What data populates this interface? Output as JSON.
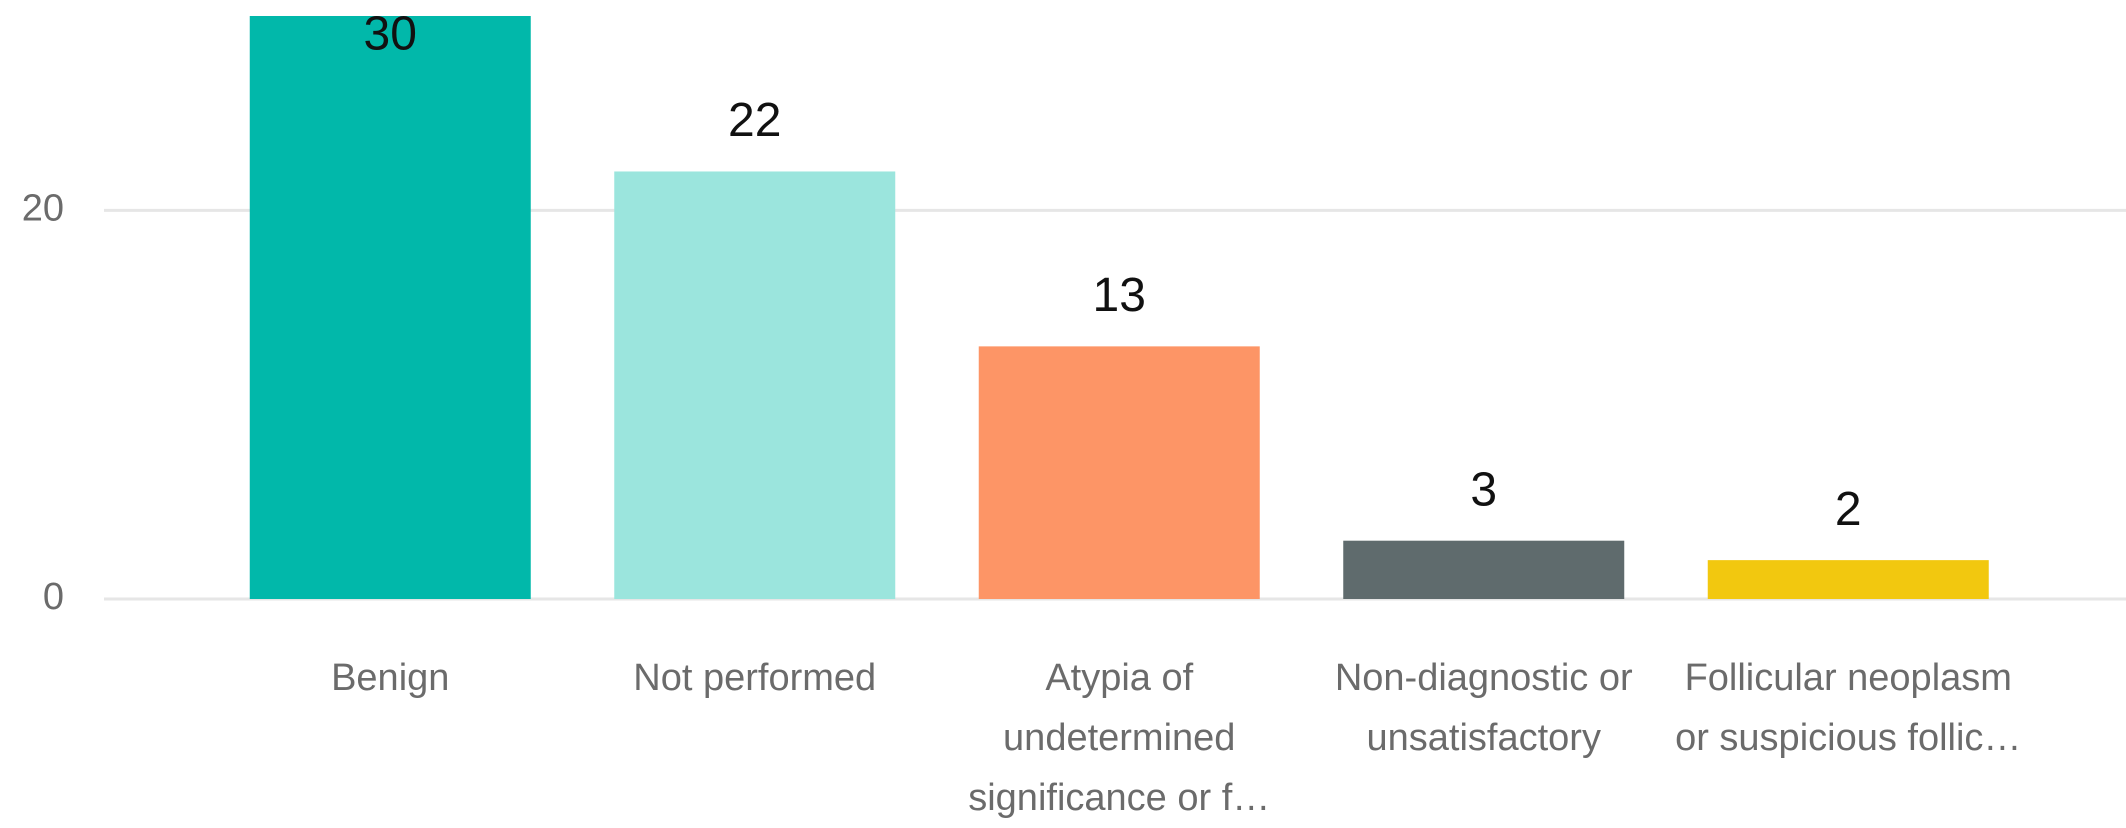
{
  "chart_data": {
    "type": "bar",
    "categories": [
      "Benign",
      "Not performed",
      "Atypia of undetermined significance or f…",
      "Non-diagnostic or unsatisfactory",
      "Follicular neoplasm or suspicious follic…"
    ],
    "values": [
      30,
      22,
      13,
      3,
      2
    ],
    "colors": [
      "#01b8aa",
      "#9be5dd",
      "#fd9566",
      "#5f6b6d",
      "#f2c80f"
    ],
    "ylim": [
      0,
      30
    ],
    "yticks": [
      0,
      20
    ],
    "grid": true
  }
}
